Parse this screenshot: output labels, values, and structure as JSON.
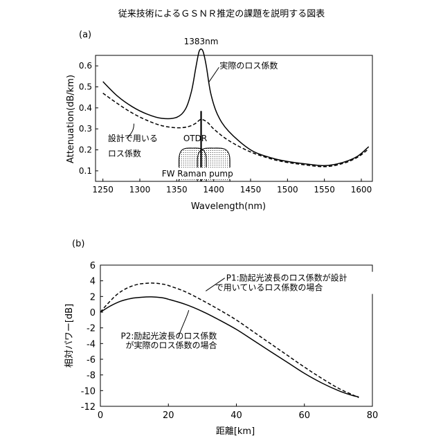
{
  "title": "従来技術によるＧＳＮＲ推定の課題を説明する図表",
  "chart_data": [
    {
      "type": "line",
      "panel_label": "(a)",
      "xlabel": "Wavelength(nm)",
      "ylabel": "Attenuation(dB/km)",
      "xlim": [
        1240,
        1615
      ],
      "ylim": [
        0.05,
        0.65
      ],
      "xticks": [
        1250,
        1300,
        1350,
        1400,
        1450,
        1500,
        1550,
        1600
      ],
      "yticks": [
        0.1,
        0.2,
        0.3,
        0.4,
        0.5,
        0.6
      ],
      "grid": false,
      "series": [
        {
          "name": "実際のロス係数",
          "style": "solid",
          "x": [
            1250,
            1270,
            1290,
            1310,
            1330,
            1350,
            1362,
            1370,
            1376,
            1380,
            1383,
            1386,
            1390,
            1396,
            1405,
            1420,
            1450,
            1480,
            1500,
            1520,
            1550,
            1575,
            1595,
            1610
          ],
          "y": [
            0.525,
            0.455,
            0.405,
            0.37,
            0.35,
            0.355,
            0.395,
            0.48,
            0.595,
            0.665,
            0.68,
            0.665,
            0.6,
            0.47,
            0.37,
            0.29,
            0.2,
            0.16,
            0.145,
            0.135,
            0.125,
            0.14,
            0.17,
            0.215
          ]
        },
        {
          "name": "設計で用いるロス係数",
          "style": "dashed",
          "x": [
            1250,
            1270,
            1290,
            1310,
            1330,
            1350,
            1365,
            1375,
            1383,
            1392,
            1400,
            1420,
            1450,
            1480,
            1500,
            1520,
            1550,
            1575,
            1595,
            1610
          ],
          "y": [
            0.47,
            0.42,
            0.375,
            0.34,
            0.315,
            0.305,
            0.31,
            0.325,
            0.345,
            0.33,
            0.3,
            0.245,
            0.19,
            0.155,
            0.14,
            0.13,
            0.12,
            0.135,
            0.165,
            0.205
          ]
        }
      ],
      "annotations": [
        {
          "text": "1383nm",
          "x": 1383,
          "y": 0.68
        },
        {
          "text": "実際のロス係数",
          "x": 1395,
          "y": 0.58
        },
        {
          "text": "設計で用いる",
          "x": 1268,
          "y": 0.235
        },
        {
          "text": "ロス係数",
          "x": 1268,
          "y": 0.175
        },
        {
          "text": "OTDR",
          "x": 1375,
          "y": 0.235
        },
        {
          "text": "FW Raman pump",
          "x": 1378,
          "y": 0.07
        }
      ],
      "otdr_wavelength": 1383,
      "pump_bands": [
        {
          "from": 1353,
          "to": 1390
        },
        {
          "from": 1378,
          "to": 1422
        }
      ]
    },
    {
      "type": "line",
      "panel_label": "(b)",
      "xlabel": "距離[km]",
      "ylabel": "相対パワー[dB]",
      "xlim": [
        0,
        80
      ],
      "ylim": [
        -12,
        6
      ],
      "xticks": [
        0,
        20,
        40,
        60,
        80
      ],
      "yticks": [
        6,
        4,
        2,
        0,
        -2,
        -4,
        -6,
        -8,
        -10,
        -12
      ],
      "grid": false,
      "series": [
        {
          "name": "P1:励起光波長のロス係数が設計で用いているロス係数の場合",
          "style": "dashed",
          "x": [
            0,
            2,
            5,
            8,
            11,
            14,
            16,
            18,
            20,
            25,
            30,
            35,
            40,
            45,
            50,
            55,
            60,
            65,
            70,
            74,
            76
          ],
          "y": [
            0,
            1.0,
            2.3,
            3.1,
            3.55,
            3.7,
            3.7,
            3.6,
            3.4,
            2.6,
            1.5,
            0.3,
            -1.0,
            -2.5,
            -4.0,
            -5.5,
            -7.0,
            -8.4,
            -9.7,
            -10.5,
            -10.9
          ]
        },
        {
          "name": "P2:励起光波長のロス係数が実際のロス係数の場合",
          "style": "solid",
          "x": [
            0,
            3,
            6,
            9,
            12,
            15,
            18,
            20,
            25,
            30,
            35,
            40,
            45,
            50,
            55,
            60,
            65,
            70,
            74,
            76
          ],
          "y": [
            0,
            0.8,
            1.4,
            1.75,
            1.9,
            1.95,
            1.85,
            1.65,
            1.0,
            0.1,
            -1.0,
            -2.2,
            -3.6,
            -5.0,
            -6.4,
            -7.8,
            -9.0,
            -10.0,
            -10.6,
            -10.8
          ]
        }
      ],
      "annotations": [
        {
          "text": "P1:励起光波長のロス係数が設計",
          "x": 37,
          "y": 4.0
        },
        {
          "text": "で用いているロス係数の場合",
          "x": 37,
          "y": 2.8
        },
        {
          "text": "P2:励起光波長のロス係数",
          "x": 6,
          "y": -3.4
        },
        {
          "text": "が実際のロス係数の場合",
          "x": 6,
          "y": -4.6
        }
      ]
    }
  ]
}
